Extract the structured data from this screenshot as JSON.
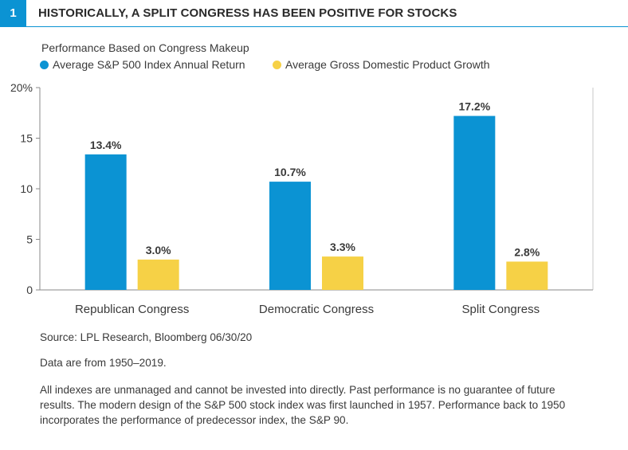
{
  "figure": {
    "number": "1",
    "title": "HISTORICALLY, A SPLIT CONGRESS HAS BEEN POSITIVE FOR STOCKS",
    "subtitle": "Performance Based on Congress Makeup"
  },
  "chart_data": {
    "type": "bar",
    "categories": [
      "Republican Congress",
      "Democratic Congress",
      "Split Congress"
    ],
    "series": [
      {
        "name": "Average S&P 500 Index Annual Return",
        "values": [
          13.4,
          10.7,
          17.2
        ],
        "color": "#0b93d3",
        "labels": [
          "13.4%",
          "10.7%",
          "17.2%"
        ]
      },
      {
        "name": "Average Gross Domestic Product Growth",
        "values": [
          3.0,
          3.3,
          2.8
        ],
        "color": "#f6d146",
        "labels": [
          "3.0%",
          "3.3%",
          "2.8%"
        ]
      }
    ],
    "ylim": [
      0,
      20
    ],
    "yticks": [
      0,
      5,
      10,
      15,
      20
    ],
    "ytick_labels": [
      "0",
      "5",
      "10",
      "15",
      "20%"
    ],
    "grid": false,
    "legend_position": "top-left"
  },
  "notes": {
    "source": "Source: LPL Research, Bloomberg   06/30/20",
    "range": "Data are from 1950–2019.",
    "disclaimer": "All indexes are unmanaged and cannot be invested into directly. Past performance is no guarantee of future results. The modern design of the S&P 500 stock index was first launched in 1957. Performance back to 1950 incorporates the performance of predecessor index, the S&P 90."
  },
  "colors": {
    "accent": "#0b93d3",
    "gdp": "#f6d146",
    "axis": "#8a8a8a"
  }
}
